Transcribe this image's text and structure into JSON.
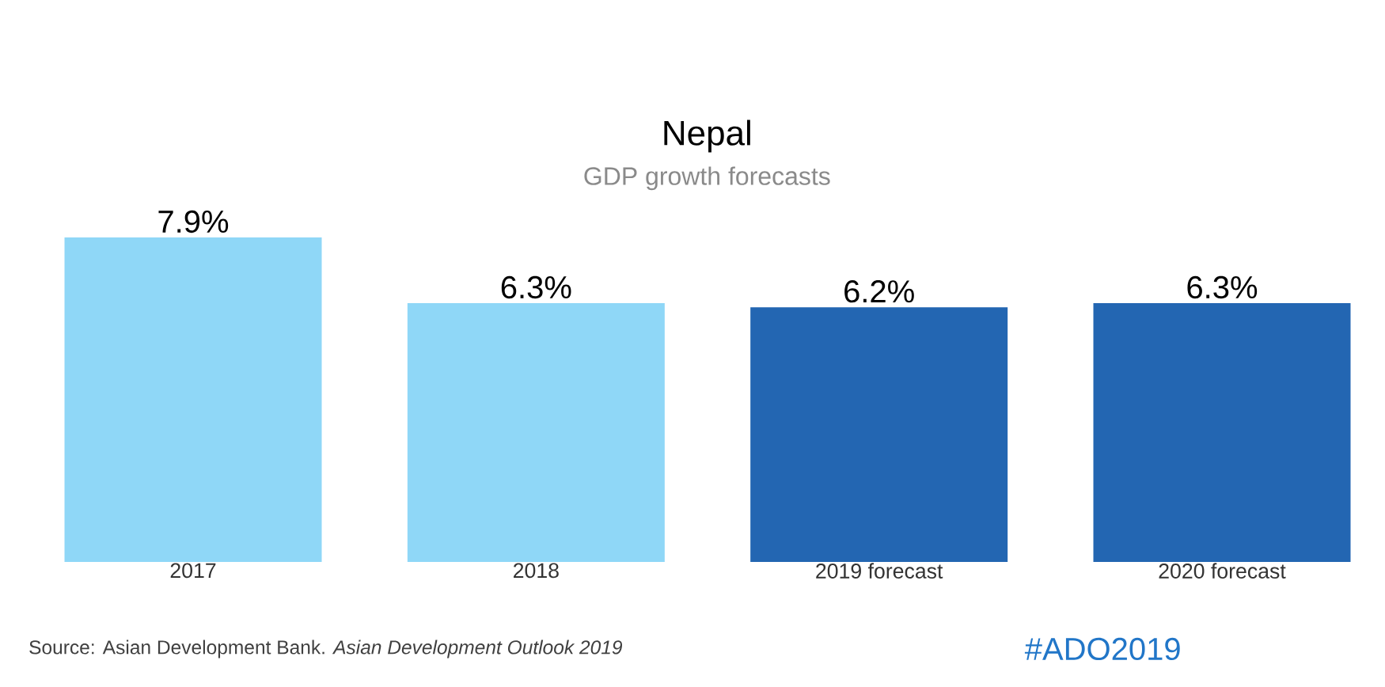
{
  "chart_data": {
    "type": "bar",
    "title": "Nepal",
    "subtitle": "GDP growth forecasts",
    "categories": [
      "2017",
      "2018",
      "2019 forecast",
      "2020 forecast"
    ],
    "values": [
      7.9,
      6.3,
      6.2,
      6.3
    ],
    "value_labels": [
      "7.9%",
      "6.3%",
      "6.2%",
      "6.3%"
    ],
    "colors": [
      "#8fd7f7",
      "#8fd7f7",
      "#2366b2",
      "#2366b2"
    ],
    "annotations": [
      "Source: Asian Development Bank. *Asian Development Outlook 2019*",
      "#ADO2019"
    ]
  }
}
